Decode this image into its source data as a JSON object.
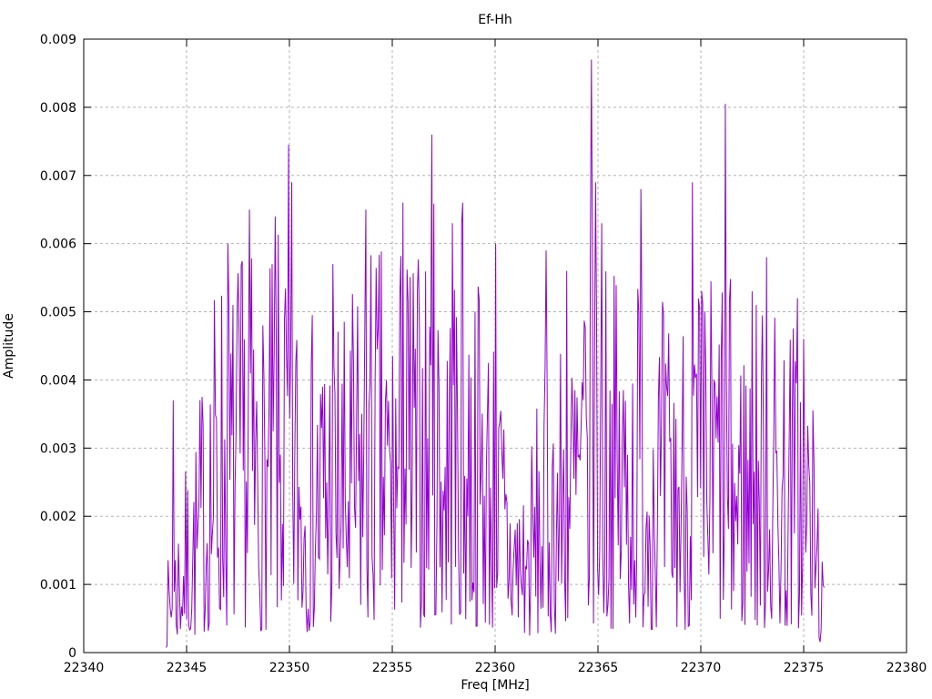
{
  "chart_data": {
    "type": "line",
    "style": "dense-noise-spectrum",
    "title": "Ef-Hh",
    "xlabel": "Freq [MHz]",
    "ylabel": "Amplitude",
    "xlim": [
      22340,
      22380
    ],
    "ylim": [
      0,
      0.009
    ],
    "grid": true,
    "legend": "none",
    "colors": {
      "line": "#9400d3",
      "grid": "#b3b3b3",
      "axis": "#000000",
      "text": "#000000",
      "background": "#ffffff"
    },
    "x_ticks": [
      {
        "value": 22340,
        "label": "22340"
      },
      {
        "value": 22345,
        "label": "22345"
      },
      {
        "value": 22350,
        "label": "22350"
      },
      {
        "value": 22355,
        "label": "22355"
      },
      {
        "value": 22360,
        "label": "22360"
      },
      {
        "value": 22365,
        "label": "22365"
      },
      {
        "value": 22370,
        "label": "22370"
      },
      {
        "value": 22375,
        "label": "22375"
      },
      {
        "value": 22380,
        "label": "22380"
      }
    ],
    "y_ticks": [
      {
        "value": 0,
        "label": "0"
      },
      {
        "value": 0.001,
        "label": "0.001"
      },
      {
        "value": 0.002,
        "label": "0.002"
      },
      {
        "value": 0.003,
        "label": "0.003"
      },
      {
        "value": 0.004,
        "label": "0.004"
      },
      {
        "value": 0.005,
        "label": "0.005"
      },
      {
        "value": 0.006,
        "label": "0.006"
      },
      {
        "value": 0.007,
        "label": "0.007"
      },
      {
        "value": 0.008,
        "label": "0.008"
      },
      {
        "value": 0.009,
        "label": "0.009"
      }
    ],
    "signal": {
      "x_start": 22344.0,
      "x_end": 22376.0,
      "points": 640,
      "seed": 7,
      "floor_frac": 0.06,
      "shape": 1.5,
      "envelope": [
        [
          22344.0,
          0.0012
        ],
        [
          22344.5,
          0.0022
        ],
        [
          22345.0,
          0.0028
        ],
        [
          22345.5,
          0.0034
        ],
        [
          22346.0,
          0.005
        ],
        [
          22346.6,
          0.006
        ],
        [
          22347.2,
          0.0057
        ],
        [
          22348.0,
          0.0062
        ],
        [
          22348.7,
          0.0052
        ],
        [
          22349.3,
          0.006
        ],
        [
          22350.0,
          0.0068
        ],
        [
          22350.6,
          0.005
        ],
        [
          22351.3,
          0.0051
        ],
        [
          22352.0,
          0.0056
        ],
        [
          22352.7,
          0.005
        ],
        [
          22353.5,
          0.0058
        ],
        [
          22354.2,
          0.0063
        ],
        [
          22355.0,
          0.0056
        ],
        [
          22355.6,
          0.0065
        ],
        [
          22356.3,
          0.006
        ],
        [
          22357.0,
          0.0068
        ],
        [
          22357.7,
          0.0061
        ],
        [
          22358.4,
          0.0064
        ],
        [
          22359.0,
          0.006
        ],
        [
          22359.6,
          0.0055
        ],
        [
          22360.2,
          0.0045
        ],
        [
          22360.8,
          0.0032
        ],
        [
          22361.5,
          0.0028
        ],
        [
          22362.2,
          0.004
        ],
        [
          22363.0,
          0.0046
        ],
        [
          22363.8,
          0.0054
        ],
        [
          22364.5,
          0.006
        ],
        [
          22364.8,
          0.0064
        ],
        [
          22365.3,
          0.0062
        ],
        [
          22366.0,
          0.0055
        ],
        [
          22366.8,
          0.0058
        ],
        [
          22367.2,
          0.006
        ],
        [
          22368.0,
          0.0053
        ],
        [
          22368.8,
          0.005
        ],
        [
          22369.6,
          0.0058
        ],
        [
          22370.3,
          0.0057
        ],
        [
          22371.0,
          0.006
        ],
        [
          22371.8,
          0.0052
        ],
        [
          22372.5,
          0.0052
        ],
        [
          22373.2,
          0.0056
        ],
        [
          22374.0,
          0.005
        ],
        [
          22374.6,
          0.0051
        ],
        [
          22375.2,
          0.0047
        ],
        [
          22375.6,
          0.0033
        ],
        [
          22376.0,
          0.001
        ]
      ],
      "peaks": [
        [
          22344.35,
          0.0037
        ],
        [
          22347.0,
          0.006
        ],
        [
          22348.05,
          0.0065
        ],
        [
          22349.3,
          0.0064
        ],
        [
          22349.95,
          0.00745
        ],
        [
          22350.1,
          0.0069
        ],
        [
          22352.1,
          0.0057
        ],
        [
          22353.7,
          0.0065
        ],
        [
          22355.5,
          0.0066
        ],
        [
          22356.9,
          0.0076
        ],
        [
          22357.9,
          0.0063
        ],
        [
          22358.4,
          0.0066
        ],
        [
          22360.0,
          0.006
        ],
        [
          22362.5,
          0.0059
        ],
        [
          22363.5,
          0.0056
        ],
        [
          22364.7,
          0.0087
        ],
        [
          22364.9,
          0.0069
        ],
        [
          22365.2,
          0.0063
        ],
        [
          22367.1,
          0.0068
        ],
        [
          22369.6,
          0.0069
        ],
        [
          22371.2,
          0.00805
        ],
        [
          22372.5,
          0.0053
        ],
        [
          22373.2,
          0.0058
        ],
        [
          22374.7,
          0.0052
        ],
        [
          22375.0,
          0.0046
        ]
      ]
    }
  }
}
